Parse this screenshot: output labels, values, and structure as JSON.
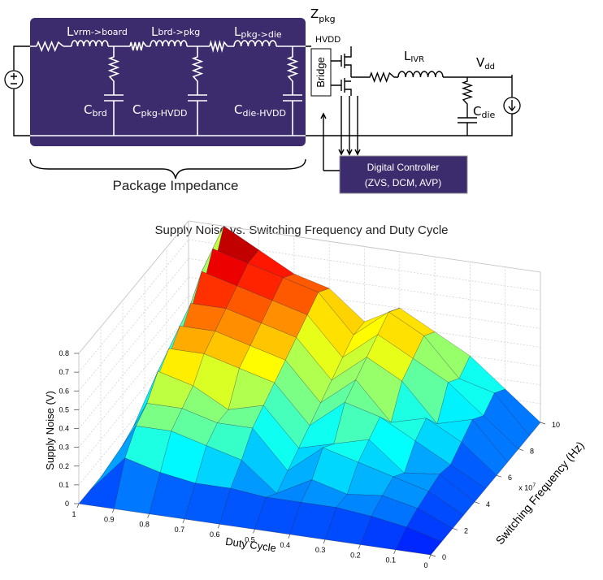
{
  "diagram": {
    "labels": {
      "l_vrm": {
        "main": "L",
        "sub": "vrm->board"
      },
      "l_brd": {
        "main": "L",
        "sub": "brd->pkg"
      },
      "l_pkg": {
        "main": "L",
        "sub": "pkg->die"
      },
      "c_brd": {
        "main": "C",
        "sub": "brd"
      },
      "c_pkg": {
        "main": "C",
        "sub": "pkg-HVDD"
      },
      "c_die_hvdd": {
        "main": "C",
        "sub": "die-HVDD"
      },
      "z_pkg": {
        "main": "Z",
        "sub": "pkg"
      },
      "hvdd": "HVDD",
      "bridge": "Bridge",
      "l_ivr": {
        "main": "L",
        "sub": "IVR"
      },
      "vdd": {
        "main": "V",
        "sub": "dd"
      },
      "c_die": {
        "main": "C",
        "sub": "die"
      }
    },
    "controller": {
      "title": "Digital Controller",
      "modes": "(ZVS, DCM, AVP)"
    },
    "brace_label": "Package Impedance"
  },
  "chart_data": {
    "type": "surface",
    "title": "Supply Noise vs. Switching Frequency and Duty Cycle",
    "xlabel": "Duty Cycle",
    "ylabel": "Switching Frequency (Hz)",
    "zlabel": "Supply Noise (V)",
    "y_multiplier": {
      "text": "x 10",
      "exponent": "7"
    },
    "colormap": "jet",
    "grid": true,
    "x": [
      0,
      0.1,
      0.2,
      0.3,
      0.4,
      0.5,
      0.6,
      0.7,
      0.8,
      0.9,
      1
    ],
    "y": [
      0,
      10000000,
      20000000,
      30000000,
      40000000,
      50000000,
      60000000,
      70000000,
      80000000,
      90000000,
      100000000
    ],
    "z": [
      [
        0,
        0,
        0,
        0,
        0,
        0,
        0,
        0,
        0,
        0,
        0
      ],
      [
        0,
        0.05,
        0.08,
        0.1,
        0.1,
        0.1,
        0.12,
        0.12,
        0.15,
        0.2,
        0
      ],
      [
        0,
        0.08,
        0.12,
        0.1,
        0.15,
        0.05,
        0.2,
        0.25,
        0.3,
        0.3,
        0
      ],
      [
        0,
        0.1,
        0.15,
        0.2,
        0.25,
        0.1,
        0.3,
        0.3,
        0.35,
        0.35,
        0
      ],
      [
        0,
        0.12,
        0.1,
        0.25,
        0.2,
        0.15,
        0.35,
        0.3,
        0.4,
        0.45,
        0
      ],
      [
        0,
        0.1,
        0.2,
        0.3,
        0.35,
        0.2,
        0.4,
        0.45,
        0.5,
        0.5,
        0
      ],
      [
        0,
        0.15,
        0.25,
        0.2,
        0.4,
        0.25,
        0.45,
        0.5,
        0.55,
        0.55,
        0
      ],
      [
        0,
        0.2,
        0.15,
        0.35,
        0.45,
        0.3,
        0.5,
        0.55,
        0.6,
        0.6,
        0
      ],
      [
        0,
        0.15,
        0.3,
        0.4,
        0.5,
        0.35,
        0.55,
        0.6,
        0.65,
        0.7,
        0
      ],
      [
        0,
        0.2,
        0.25,
        0.45,
        0.55,
        0.4,
        0.6,
        0.65,
        0.7,
        0.75,
        0
      ],
      [
        0,
        0.15,
        0.3,
        0.4,
        0.5,
        0.4,
        0.55,
        0.6,
        0.7,
        0.8,
        0
      ]
    ],
    "xlim": [
      0,
      1
    ],
    "ylim": [
      0,
      100000000
    ],
    "zlim": [
      0,
      0.8
    ],
    "xticks": [
      0,
      0.1,
      0.2,
      0.3,
      0.4,
      0.5,
      0.6,
      0.7,
      0.8,
      0.9,
      1
    ],
    "yticks": [
      0,
      {
        "value": 20000000,
        "label": "2"
      },
      {
        "value": 40000000,
        "label": "4"
      },
      {
        "value": 60000000,
        "label": "6"
      },
      {
        "value": 80000000,
        "label": "8"
      },
      {
        "value": 100000000,
        "label": "10"
      }
    ],
    "zticks": [
      0,
      0.1,
      0.2,
      0.3,
      0.4,
      0.5,
      0.6,
      0.7,
      0.8
    ]
  }
}
